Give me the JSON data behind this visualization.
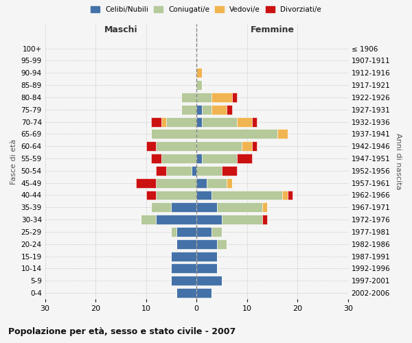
{
  "age_groups_bottom_to_top": [
    "0-4",
    "5-9",
    "10-14",
    "15-19",
    "20-24",
    "25-29",
    "30-34",
    "35-39",
    "40-44",
    "45-49",
    "50-54",
    "55-59",
    "60-64",
    "65-69",
    "70-74",
    "75-79",
    "80-84",
    "85-89",
    "90-94",
    "95-99",
    "100+"
  ],
  "birth_years_bottom_to_top": [
    "2002-2006",
    "1997-2001",
    "1992-1996",
    "1987-1991",
    "1982-1986",
    "1977-1981",
    "1972-1976",
    "1967-1971",
    "1962-1966",
    "1957-1961",
    "1952-1956",
    "1947-1951",
    "1942-1946",
    "1937-1941",
    "1932-1936",
    "1927-1931",
    "1922-1926",
    "1917-1921",
    "1912-1916",
    "1907-1911",
    "≤ 1906"
  ],
  "colors": {
    "celibi": "#4472a8",
    "coniugati": "#b5c99a",
    "vedovi": "#f0b450",
    "divorziati": "#cc1111"
  },
  "maschi": {
    "celibi": [
      4,
      5,
      5,
      5,
      4,
      4,
      8,
      5,
      0,
      0,
      1,
      0,
      0,
      0,
      0,
      0,
      0,
      0,
      0,
      0,
      0
    ],
    "coniugati": [
      0,
      0,
      0,
      0,
      0,
      1,
      3,
      4,
      8,
      8,
      5,
      7,
      8,
      9,
      6,
      3,
      3,
      0,
      0,
      0,
      0
    ],
    "vedovi": [
      0,
      0,
      0,
      0,
      0,
      0,
      0,
      0,
      0,
      0,
      0,
      0,
      0,
      0,
      1,
      0,
      0,
      0,
      0,
      0,
      0
    ],
    "divorziati": [
      0,
      0,
      0,
      0,
      0,
      0,
      0,
      0,
      2,
      4,
      2,
      2,
      2,
      0,
      2,
      0,
      0,
      0,
      0,
      0,
      0
    ]
  },
  "femmine": {
    "nubili": [
      3,
      5,
      4,
      4,
      4,
      3,
      5,
      4,
      3,
      2,
      0,
      1,
      0,
      0,
      1,
      1,
      0,
      0,
      0,
      0,
      0
    ],
    "coniugate": [
      0,
      0,
      0,
      0,
      2,
      2,
      8,
      9,
      14,
      4,
      5,
      7,
      9,
      16,
      7,
      2,
      3,
      1,
      0,
      0,
      0
    ],
    "vedove": [
      0,
      0,
      0,
      0,
      0,
      0,
      0,
      1,
      1,
      1,
      0,
      0,
      2,
      2,
      3,
      3,
      4,
      0,
      1,
      0,
      0
    ],
    "divorziate": [
      0,
      0,
      0,
      0,
      0,
      0,
      1,
      0,
      1,
      0,
      3,
      3,
      1,
      0,
      1,
      1,
      1,
      0,
      0,
      0,
      0
    ]
  },
  "title": "Popolazione per età, sesso e stato civile - 2007",
  "ylabel_left": "Fasce di età",
  "ylabel_right": "Anni di nascita",
  "xlabel_maschi": "Maschi",
  "xlabel_femmine": "Femmine",
  "xlim": 30,
  "legend_labels": [
    "Celibi/Nubili",
    "Coniugati/e",
    "Vedovi/e",
    "Divorziati/e"
  ],
  "background_color": "#f5f5f5"
}
